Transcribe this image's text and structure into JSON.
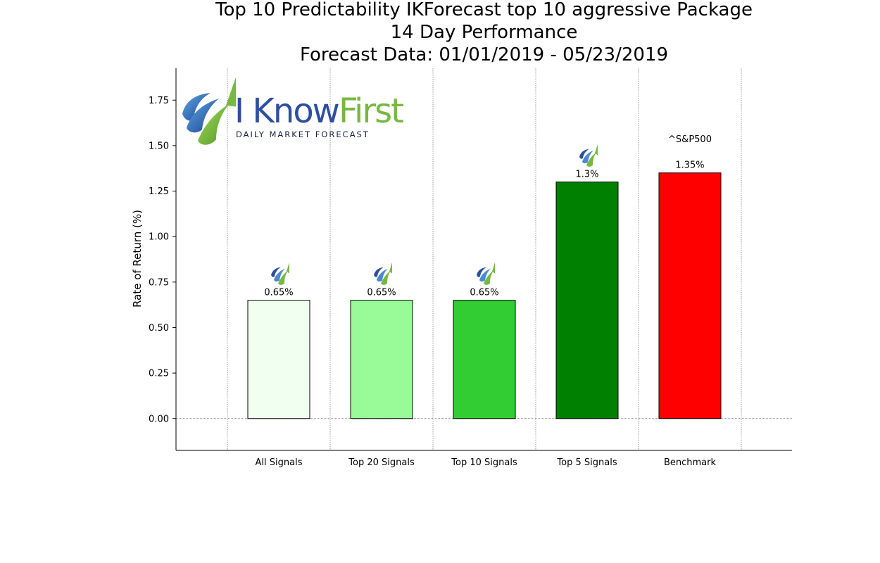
{
  "title_lines": [
    "Top 10 Predictability IKForecast top 10 aggressive Package",
    "14 Day Performance",
    "Forecast Data: 01/01/2019 - 05/23/2019"
  ],
  "logo": {
    "word_primary": "I Know",
    "word_secondary": "First",
    "tagline": "DAILY MARKET FORECAST",
    "colors": {
      "blue": "#2e4f9e",
      "green": "#77b843"
    }
  },
  "chart_data": {
    "type": "bar",
    "categories": [
      "All Signals",
      "Top 20 Signals",
      "Top 10 Signals",
      "Top 5 Signals",
      "Benchmark"
    ],
    "values": [
      0.65,
      0.65,
      0.65,
      1.3,
      1.35
    ],
    "data_labels": [
      "0.65%",
      "0.65%",
      "0.65%",
      "1.3%",
      "1.35%"
    ],
    "bar_colors": [
      "#f0fff0",
      "#98fb98",
      "#32cd32",
      "#008000",
      "#ff0000"
    ],
    "bar_icons": [
      true,
      true,
      true,
      true,
      false
    ],
    "benchmark_label": "^S&P500",
    "ylabel": "Rate of Return (%)",
    "xlabel": "",
    "ylim": [
      -0.175,
      1.925
    ],
    "yticks": [
      0.0,
      0.25,
      0.5,
      0.75,
      1.0,
      1.25,
      1.5,
      1.75
    ],
    "ytick_labels": [
      "0.00",
      "0.25",
      "0.50",
      "0.75",
      "1.00",
      "1.25",
      "1.50",
      "1.75"
    ],
    "grid": "vertical dotted",
    "zero_line": true
  }
}
